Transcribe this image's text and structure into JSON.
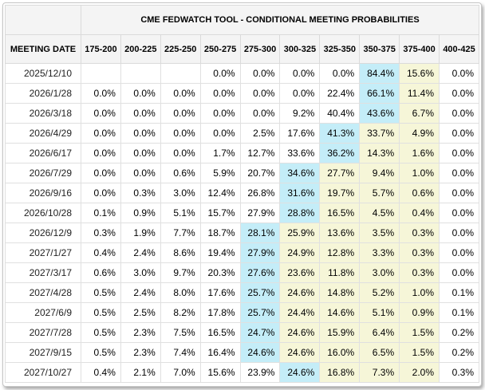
{
  "title": "CME FEDWATCH TOOL - CONDITIONAL MEETING PROBABILITIES",
  "table": {
    "date_column_header": "MEETING DATE",
    "rate_bins": [
      "175-200",
      "200-225",
      "225-250",
      "250-275",
      "275-300",
      "300-325",
      "325-350",
      "350-375",
      "375-400",
      "400-425"
    ],
    "rows": [
      {
        "date": "2025/12/10",
        "values": [
          "",
          "",
          "",
          "0.0%",
          "0.0%",
          "0.0%",
          "0.0%",
          "84.4%",
          "15.6%",
          "0.0%"
        ],
        "highlights": [
          "",
          "",
          "",
          "",
          "",
          "",
          "",
          "cyan",
          "yellow",
          ""
        ]
      },
      {
        "date": "2026/1/28",
        "values": [
          "0.0%",
          "0.0%",
          "0.0%",
          "0.0%",
          "0.0%",
          "0.0%",
          "22.4%",
          "66.1%",
          "11.4%",
          "0.0%"
        ],
        "highlights": [
          "",
          "",
          "",
          "",
          "",
          "",
          "",
          "cyan",
          "yellow",
          ""
        ]
      },
      {
        "date": "2026/3/18",
        "values": [
          "0.0%",
          "0.0%",
          "0.0%",
          "0.0%",
          "0.0%",
          "9.2%",
          "40.4%",
          "43.6%",
          "6.7%",
          "0.0%"
        ],
        "highlights": [
          "",
          "",
          "",
          "",
          "",
          "",
          "",
          "cyan",
          "yellow",
          ""
        ]
      },
      {
        "date": "2026/4/29",
        "values": [
          "0.0%",
          "0.0%",
          "0.0%",
          "0.0%",
          "2.5%",
          "17.6%",
          "41.3%",
          "33.7%",
          "4.9%",
          "0.0%"
        ],
        "highlights": [
          "",
          "",
          "",
          "",
          "",
          "",
          "cyan",
          "yellow",
          "yellow",
          ""
        ]
      },
      {
        "date": "2026/6/17",
        "values": [
          "0.0%",
          "0.0%",
          "0.0%",
          "1.7%",
          "12.7%",
          "33.6%",
          "36.2%",
          "14.3%",
          "1.6%",
          "0.0%"
        ],
        "highlights": [
          "",
          "",
          "",
          "",
          "",
          "",
          "cyan",
          "yellow",
          "yellow",
          ""
        ]
      },
      {
        "date": "2026/7/29",
        "values": [
          "0.0%",
          "0.0%",
          "0.6%",
          "5.9%",
          "20.7%",
          "34.6%",
          "27.7%",
          "9.4%",
          "1.0%",
          "0.0%"
        ],
        "highlights": [
          "",
          "",
          "",
          "",
          "",
          "cyan",
          "yellow",
          "yellow",
          "yellow",
          ""
        ]
      },
      {
        "date": "2026/9/16",
        "values": [
          "0.0%",
          "0.3%",
          "3.0%",
          "12.4%",
          "26.8%",
          "31.6%",
          "19.7%",
          "5.7%",
          "0.6%",
          "0.0%"
        ],
        "highlights": [
          "",
          "",
          "",
          "",
          "",
          "cyan",
          "yellow",
          "yellow",
          "yellow",
          ""
        ]
      },
      {
        "date": "2026/10/28",
        "values": [
          "0.1%",
          "0.9%",
          "5.1%",
          "15.7%",
          "27.9%",
          "28.8%",
          "16.5%",
          "4.5%",
          "0.4%",
          "0.0%"
        ],
        "highlights": [
          "",
          "",
          "",
          "",
          "",
          "cyan",
          "yellow",
          "yellow",
          "yellow",
          ""
        ]
      },
      {
        "date": "2026/12/9",
        "values": [
          "0.3%",
          "1.9%",
          "7.7%",
          "18.7%",
          "28.1%",
          "25.9%",
          "13.6%",
          "3.5%",
          "0.3%",
          "0.0%"
        ],
        "highlights": [
          "",
          "",
          "",
          "",
          "cyan",
          "yellow",
          "yellow",
          "yellow",
          "yellow",
          ""
        ]
      },
      {
        "date": "2027/1/27",
        "values": [
          "0.4%",
          "2.4%",
          "8.6%",
          "19.4%",
          "27.9%",
          "24.9%",
          "12.8%",
          "3.3%",
          "0.3%",
          "0.0%"
        ],
        "highlights": [
          "",
          "",
          "",
          "",
          "cyan",
          "yellow",
          "yellow",
          "yellow",
          "yellow",
          ""
        ]
      },
      {
        "date": "2027/3/17",
        "values": [
          "0.6%",
          "3.0%",
          "9.7%",
          "20.3%",
          "27.6%",
          "23.6%",
          "11.8%",
          "3.0%",
          "0.3%",
          "0.0%"
        ],
        "highlights": [
          "",
          "",
          "",
          "",
          "cyan",
          "yellow",
          "yellow",
          "yellow",
          "yellow",
          ""
        ]
      },
      {
        "date": "2027/4/28",
        "values": [
          "0.5%",
          "2.4%",
          "8.0%",
          "17.6%",
          "25.7%",
          "24.6%",
          "14.8%",
          "5.2%",
          "1.0%",
          "0.1%"
        ],
        "highlights": [
          "",
          "",
          "",
          "",
          "cyan",
          "yellow",
          "yellow",
          "yellow",
          "yellow",
          ""
        ]
      },
      {
        "date": "2027/6/9",
        "values": [
          "0.5%",
          "2.5%",
          "8.2%",
          "17.8%",
          "25.7%",
          "24.4%",
          "14.6%",
          "5.1%",
          "0.9%",
          "0.1%"
        ],
        "highlights": [
          "",
          "",
          "",
          "",
          "cyan",
          "yellow",
          "yellow",
          "yellow",
          "yellow",
          ""
        ]
      },
      {
        "date": "2027/7/28",
        "values": [
          "0.5%",
          "2.3%",
          "7.5%",
          "16.5%",
          "24.7%",
          "24.6%",
          "15.9%",
          "6.4%",
          "1.5%",
          "0.2%"
        ],
        "highlights": [
          "",
          "",
          "",
          "",
          "cyan",
          "yellow",
          "yellow",
          "yellow",
          "yellow",
          ""
        ]
      },
      {
        "date": "2027/9/15",
        "values": [
          "0.5%",
          "2.3%",
          "7.4%",
          "16.4%",
          "24.6%",
          "24.6%",
          "16.0%",
          "6.5%",
          "1.5%",
          "0.2%"
        ],
        "highlights": [
          "",
          "",
          "",
          "",
          "cyan",
          "yellow",
          "yellow",
          "yellow",
          "yellow",
          ""
        ]
      },
      {
        "date": "2027/10/27",
        "values": [
          "0.4%",
          "2.1%",
          "7.0%",
          "15.6%",
          "23.9%",
          "24.6%",
          "16.8%",
          "7.3%",
          "2.0%",
          "0.3%"
        ],
        "highlights": [
          "",
          "",
          "",
          "",
          "",
          "cyan",
          "yellow",
          "yellow",
          "yellow",
          ""
        ]
      }
    ]
  },
  "colors": {
    "cyan_highlight": "#c4edf8",
    "yellow_highlight": "#f6f6d8"
  }
}
